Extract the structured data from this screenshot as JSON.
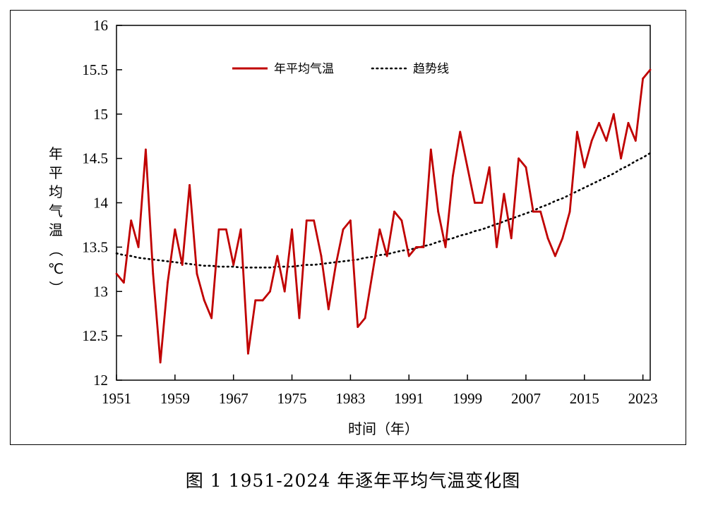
{
  "caption": "图 1 1951-2024 年逐年平均气温变化图",
  "chart_data": {
    "type": "line",
    "title": "",
    "xlabel": "时间（年）",
    "ylabel_chars": [
      "年",
      "平",
      "均",
      "气",
      "温",
      "（",
      "℃",
      "）"
    ],
    "ylabel": "年平均气温（℃）",
    "xlim": [
      1951,
      2024
    ],
    "ylim": [
      12,
      16
    ],
    "x_ticks": [
      1951,
      1959,
      1967,
      1975,
      1983,
      1991,
      1999,
      2007,
      2015,
      2023
    ],
    "x_tick_labels": [
      "1951",
      "1959",
      "1967",
      "1975",
      "1983",
      "1991",
      "1999",
      "2007",
      "2015",
      "2023"
    ],
    "y_ticks": [
      12,
      12.5,
      13,
      13.5,
      14,
      14.5,
      15,
      15.5,
      16
    ],
    "y_tick_labels": [
      "12",
      "12.5",
      "13",
      "13.5",
      "14",
      "14.5",
      "15",
      "15.5",
      "16"
    ],
    "grid": false,
    "legend_position": "top-center",
    "x": [
      1951,
      1952,
      1953,
      1954,
      1955,
      1956,
      1957,
      1958,
      1959,
      1960,
      1961,
      1962,
      1963,
      1964,
      1965,
      1966,
      1967,
      1968,
      1969,
      1970,
      1971,
      1972,
      1973,
      1974,
      1975,
      1976,
      1977,
      1978,
      1979,
      1980,
      1981,
      1982,
      1983,
      1984,
      1985,
      1986,
      1987,
      1988,
      1989,
      1990,
      1991,
      1992,
      1993,
      1994,
      1995,
      1996,
      1997,
      1998,
      1999,
      2000,
      2001,
      2002,
      2003,
      2004,
      2005,
      2006,
      2007,
      2008,
      2009,
      2010,
      2011,
      2012,
      2013,
      2014,
      2015,
      2016,
      2017,
      2018,
      2019,
      2020,
      2021,
      2022,
      2023,
      2024
    ],
    "series": [
      {
        "name": "年平均气温",
        "style": "solid",
        "color": "#c00000",
        "values": [
          13.2,
          13.1,
          13.8,
          13.5,
          14.6,
          13.2,
          12.2,
          13.1,
          13.7,
          13.3,
          14.2,
          13.2,
          12.9,
          12.7,
          13.7,
          13.7,
          13.3,
          13.7,
          12.3,
          12.9,
          12.9,
          13.0,
          13.4,
          13.0,
          13.7,
          12.7,
          13.8,
          13.8,
          13.4,
          12.8,
          13.3,
          13.7,
          13.8,
          12.6,
          12.7,
          13.2,
          13.7,
          13.4,
          13.9,
          13.8,
          13.4,
          13.5,
          13.5,
          14.6,
          13.9,
          13.5,
          14.3,
          14.8,
          14.4,
          14.0,
          14.0,
          14.4,
          13.5,
          14.1,
          13.6,
          14.5,
          14.4,
          13.9,
          13.9,
          13.6,
          13.4,
          13.6,
          13.9,
          14.8,
          14.4,
          14.7,
          14.9,
          14.7,
          15.0,
          14.5,
          14.9,
          14.7,
          15.4,
          15.5
        ]
      },
      {
        "name": "趋势线",
        "style": "dotted",
        "color": "#000000",
        "type": "polynomial-2",
        "values": [
          13.43,
          13.41,
          13.4,
          13.38,
          13.37,
          13.36,
          13.35,
          13.34,
          13.33,
          13.32,
          13.31,
          13.3,
          13.29,
          13.29,
          13.28,
          13.28,
          13.28,
          13.27,
          13.27,
          13.27,
          13.27,
          13.27,
          13.28,
          13.28,
          13.28,
          13.29,
          13.3,
          13.3,
          13.31,
          13.32,
          13.33,
          13.34,
          13.35,
          13.36,
          13.38,
          13.39,
          13.41,
          13.42,
          13.44,
          13.46,
          13.47,
          13.49,
          13.51,
          13.53,
          13.56,
          13.58,
          13.6,
          13.63,
          13.65,
          13.68,
          13.7,
          13.73,
          13.76,
          13.79,
          13.82,
          13.85,
          13.88,
          13.91,
          13.95,
          13.98,
          14.02,
          14.05,
          14.09,
          14.13,
          14.17,
          14.21,
          14.25,
          14.29,
          14.33,
          14.38,
          14.42,
          14.47,
          14.51,
          14.56
        ]
      }
    ]
  }
}
